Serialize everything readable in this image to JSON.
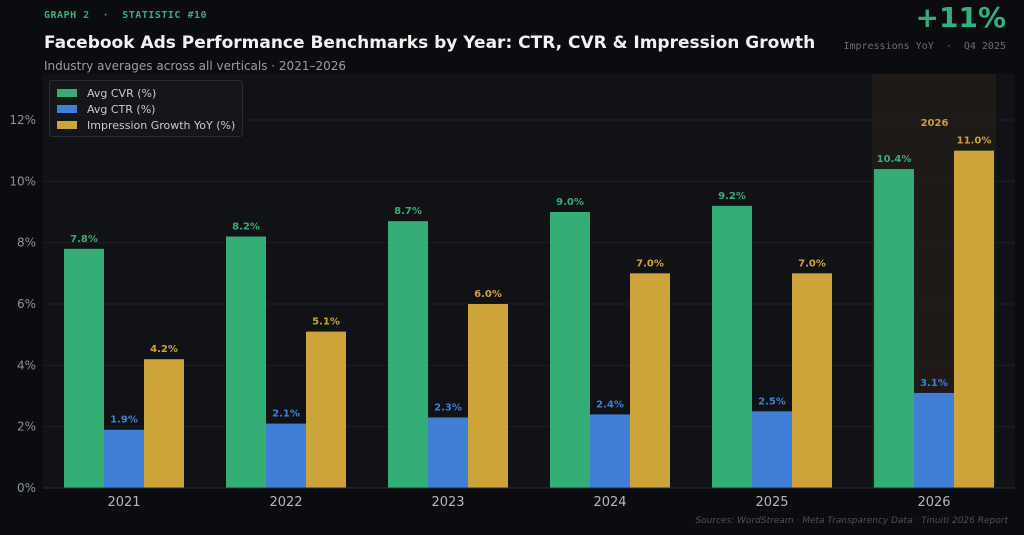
{
  "header": {
    "eyebrow": "GRAPH 2  ·  STATISTIC #10",
    "title": "Facebook Ads Performance Benchmarks by Year: CTR, CVR & Impression Growth",
    "subtitle": "Industry averages across all verticals · 2021–2026"
  },
  "kpi": {
    "value": "+11%",
    "label": "Impressions YoY  ·  Q4 2025"
  },
  "footer": {
    "sources": "Sources: WordStream · Meta Transparency Data · Tinuiti 2026 Report"
  },
  "colors": {
    "cvr": "#35ad77",
    "ctr": "#3f7fd6",
    "impression": "#cca43a",
    "highlight_band": "#1d1a17",
    "highlight_text": "#c9a13a"
  },
  "chart_data": {
    "type": "bar",
    "categories": [
      "2021",
      "2022",
      "2023",
      "2024",
      "2025",
      "2026"
    ],
    "series": [
      {
        "name": "Avg CVR (%)",
        "values": [
          7.8,
          8.2,
          8.7,
          9.0,
          9.2,
          10.4
        ],
        "labels": [
          "7.8%",
          "8.2%",
          "8.7%",
          "9.0%",
          "9.2%",
          "10.4%"
        ]
      },
      {
        "name": "Avg CTR (%)",
        "values": [
          1.9,
          2.1,
          2.3,
          2.4,
          2.5,
          3.1
        ],
        "labels": [
          "1.9%",
          "2.1%",
          "2.3%",
          "2.4%",
          "2.5%",
          "3.1%"
        ]
      },
      {
        "name": "Impression Growth YoY (%)",
        "values": [
          4.2,
          5.1,
          6.0,
          7.0,
          7.0,
          11.0
        ],
        "labels": [
          "4.2%",
          "5.1%",
          "6.0%",
          "7.0%",
          "7.0%",
          "11.0%"
        ]
      }
    ],
    "yticks": [
      0,
      2,
      4,
      6,
      8,
      10,
      12
    ],
    "ytick_labels": [
      "0%",
      "2%",
      "4%",
      "6%",
      "8%",
      "10%",
      "12%"
    ],
    "ylim": [
      0,
      13.5
    ],
    "highlight": {
      "category": "2026",
      "label": "2026"
    },
    "grid": true,
    "legend_position": "top-left"
  }
}
